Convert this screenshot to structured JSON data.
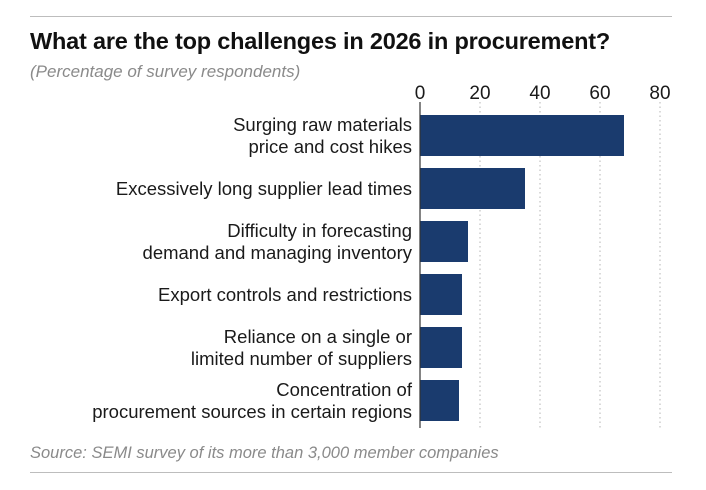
{
  "header": {
    "title": "What are the top challenges in 2026 in procurement?",
    "subtitle": "(Percentage of survey respondents)"
  },
  "footer": {
    "source": "Source: SEMI survey of its more than 3,000 member companies"
  },
  "colors": {
    "bar": "#1a3b6e",
    "grid": "#b5b5b5",
    "text": "#1a1a1a",
    "muted": "#8a8a8a"
  },
  "chart_data": {
    "type": "bar",
    "orientation": "horizontal",
    "title": "What are the top challenges in 2026 in procurement?",
    "subtitle": "(Percentage of survey respondents)",
    "categories": [
      [
        "Surging raw materials",
        "price and cost hikes"
      ],
      [
        "Excessively long supplier lead times"
      ],
      [
        "Difficulty in forecasting",
        "demand and managing inventory"
      ],
      [
        "Export controls and restrictions"
      ],
      [
        "Reliance on a single or",
        "limited number of suppliers"
      ],
      [
        "Concentration of",
        "procurement sources in certain regions"
      ]
    ],
    "values": [
      68,
      35,
      16,
      14,
      14,
      13
    ],
    "xlim": [
      0,
      80
    ],
    "xticks": [
      "0",
      "20",
      "40",
      "60",
      "80"
    ],
    "xlabel": "",
    "ylabel": "",
    "grid": true,
    "axis_position": "top"
  }
}
